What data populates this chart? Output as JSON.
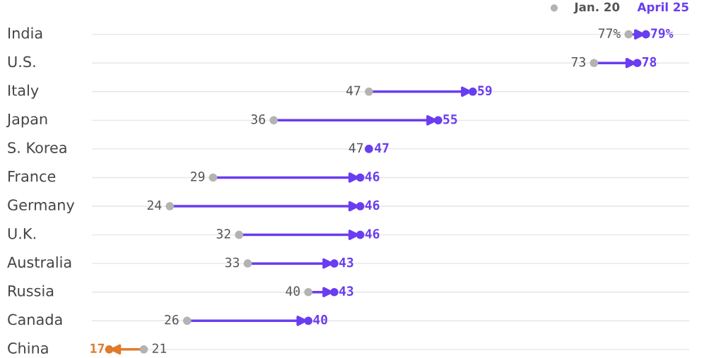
{
  "chart_data": {
    "type": "other",
    "categories": [
      "India",
      "U.S.",
      "Italy",
      "Japan",
      "S. Korea",
      "France",
      "Germany",
      "U.K.",
      "Australia",
      "Russia",
      "Canada",
      "China"
    ],
    "series": [
      {
        "name": "Jan. 20",
        "color": "#b3b3b3",
        "values": [
          77,
          73,
          47,
          36,
          47,
          29,
          24,
          32,
          33,
          40,
          26,
          21
        ],
        "value_labels": [
          "77%",
          "73",
          "47",
          "36",
          "47",
          "29",
          "24",
          "32",
          "33",
          "40",
          "26",
          "21"
        ]
      },
      {
        "name": "April 25",
        "color": "#6a3df0",
        "colors": [
          "#6a3df0",
          "#6a3df0",
          "#6a3df0",
          "#6a3df0",
          "#6a3df0",
          "#6a3df0",
          "#6a3df0",
          "#6a3df0",
          "#6a3df0",
          "#6a3df0",
          "#6a3df0",
          "#e07b2a"
        ],
        "values": [
          79,
          78,
          59,
          55,
          47,
          46,
          46,
          46,
          43,
          43,
          40,
          17
        ],
        "value_labels": [
          "79%",
          "78",
          "59",
          "55",
          "47",
          "46",
          "46",
          "46",
          "43",
          "43",
          "40",
          "17"
        ]
      }
    ],
    "legend": "top right"
  }
}
